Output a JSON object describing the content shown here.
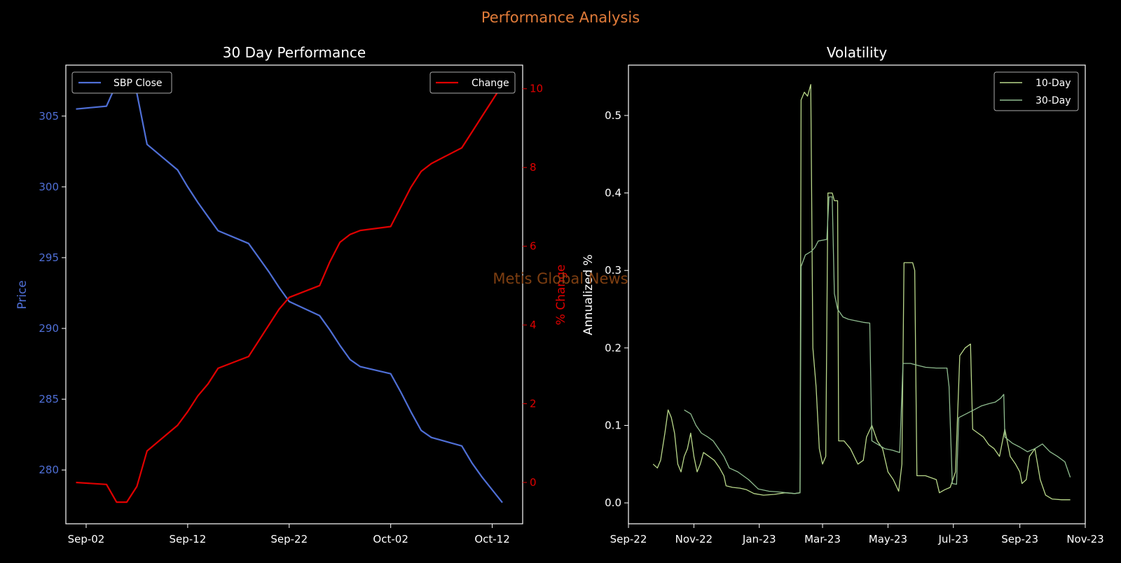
{
  "figure": {
    "title": "Performance Analysis",
    "watermark": "Metis Global News",
    "background": "#000000",
    "title_color": "#e07b39",
    "watermark_color": "#8b4513"
  },
  "chart_data": [
    {
      "type": "line",
      "title": "30 Day Performance",
      "x": [
        "2023-09-01",
        "2023-09-04",
        "2023-09-05",
        "2023-09-06",
        "2023-09-07",
        "2023-09-08",
        "2023-09-11",
        "2023-09-12",
        "2023-09-13",
        "2023-09-14",
        "2023-09-15",
        "2023-09-18",
        "2023-09-19",
        "2023-09-20",
        "2023-09-21",
        "2023-09-22",
        "2023-09-25",
        "2023-09-26",
        "2023-09-27",
        "2023-09-28",
        "2023-09-29",
        "2023-10-02",
        "2023-10-03",
        "2023-10-04",
        "2023-10-05",
        "2023-10-06",
        "2023-10-09",
        "2023-10-10",
        "2023-10-11",
        "2023-10-12",
        "2023-10-13"
      ],
      "xlabel": "",
      "x_ticks": [
        "Sep-02",
        "Sep-12",
        "Sep-22",
        "Oct-02",
        "Oct-12"
      ],
      "x_tick_dates": [
        "2023-09-02",
        "2023-09-12",
        "2023-09-22",
        "2023-10-02",
        "2023-10-12"
      ],
      "xlim": [
        "2023-08-31",
        "2023-10-15"
      ],
      "y_left": {
        "label": "Price",
        "color": "#4f6fd6",
        "lim": [
          276.2,
          308.6
        ],
        "ticks": [
          280,
          285,
          290,
          295,
          300,
          305
        ]
      },
      "y_right": {
        "label": "% Change",
        "color": "#e00000",
        "lim": [
          -1.05,
          10.6
        ],
        "ticks": [
          0,
          2,
          4,
          6,
          8,
          10
        ]
      },
      "series": [
        {
          "name": "SBP Close",
          "axis": "left",
          "color": "#4f6fd6",
          "values": [
            305.5,
            305.7,
            307.3,
            307.4,
            306.6,
            303.0,
            301.2,
            300.0,
            298.9,
            297.9,
            296.9,
            296.0,
            295.0,
            294.0,
            292.9,
            291.9,
            290.9,
            289.9,
            288.8,
            287.8,
            287.3,
            286.8,
            285.5,
            284.1,
            282.8,
            282.3,
            281.7,
            280.5,
            279.5,
            278.6,
            277.7
          ]
        },
        {
          "name": "Change",
          "axis": "right",
          "color": "#e00000",
          "values": [
            0.0,
            -0.05,
            -0.5,
            -0.5,
            -0.1,
            0.8,
            1.45,
            1.8,
            2.2,
            2.5,
            2.9,
            3.2,
            3.6,
            4.0,
            4.4,
            4.7,
            5.0,
            5.6,
            6.1,
            6.3,
            6.4,
            6.5,
            7.0,
            7.5,
            7.9,
            8.1,
            8.5,
            8.9,
            9.3,
            9.7,
            10.1
          ]
        }
      ],
      "legend": [
        "SBP Close (top-left)",
        "Change (top-right)"
      ]
    },
    {
      "type": "line",
      "title": "Volatility",
      "xlabel": "",
      "ylabel": "Annualized %",
      "x_ticks": [
        "Sep-22",
        "Nov-22",
        "Jan-23",
        "Mar-23",
        "May-23",
        "Jul-23",
        "Sep-23",
        "Nov-23"
      ],
      "x_tick_dates": [
        "2022-09-01",
        "2022-11-01",
        "2023-01-01",
        "2023-03-01",
        "2023-05-01",
        "2023-07-01",
        "2023-09-01",
        "2023-11-01"
      ],
      "xlim": [
        "2022-09-01",
        "2023-11-01"
      ],
      "ylim": [
        -0.027,
        0.565
      ],
      "y_ticks": [
        0.0,
        0.1,
        0.2,
        0.3,
        0.4,
        0.5
      ],
      "legend_position": "top-right",
      "series": [
        {
          "name": "10-Day",
          "color": "#b9d88a",
          "points": [
            [
              "2022-09-24",
              0.05
            ],
            [
              "2022-09-28",
              0.045
            ],
            [
              "2022-10-01",
              0.055
            ],
            [
              "2022-10-05",
              0.09
            ],
            [
              "2022-10-08",
              0.12
            ],
            [
              "2022-10-11",
              0.11
            ],
            [
              "2022-10-14",
              0.09
            ],
            [
              "2022-10-17",
              0.05
            ],
            [
              "2022-10-20",
              0.04
            ],
            [
              "2022-10-23",
              0.06
            ],
            [
              "2022-10-26",
              0.07
            ],
            [
              "2022-10-29",
              0.09
            ],
            [
              "2022-11-01",
              0.06
            ],
            [
              "2022-11-04",
              0.04
            ],
            [
              "2022-11-07",
              0.05
            ],
            [
              "2022-11-10",
              0.065
            ],
            [
              "2022-11-15",
              0.06
            ],
            [
              "2022-11-20",
              0.055
            ],
            [
              "2022-11-25",
              0.045
            ],
            [
              "2022-11-29",
              0.035
            ],
            [
              "2022-12-01",
              0.022
            ],
            [
              "2022-12-07",
              0.02
            ],
            [
              "2022-12-14",
              0.019
            ],
            [
              "2022-12-20",
              0.017
            ],
            [
              "2022-12-27",
              0.012
            ],
            [
              "2023-01-05",
              0.01
            ],
            [
              "2023-01-15",
              0.011
            ],
            [
              "2023-01-25",
              0.013
            ],
            [
              "2023-02-03",
              0.012
            ],
            [
              "2023-02-08",
              0.013
            ],
            [
              "2023-02-09",
              0.52
            ],
            [
              "2023-02-12",
              0.53
            ],
            [
              "2023-02-15",
              0.525
            ],
            [
              "2023-02-18",
              0.54
            ],
            [
              "2023-02-20",
              0.2
            ],
            [
              "2023-02-23",
              0.15
            ],
            [
              "2023-02-26",
              0.07
            ],
            [
              "2023-03-01",
              0.05
            ],
            [
              "2023-03-04",
              0.06
            ],
            [
              "2023-03-06",
              0.4
            ],
            [
              "2023-03-10",
              0.4
            ],
            [
              "2023-03-12",
              0.39
            ],
            [
              "2023-03-15",
              0.39
            ],
            [
              "2023-03-16",
              0.08
            ],
            [
              "2023-03-21",
              0.08
            ],
            [
              "2023-03-27",
              0.07
            ],
            [
              "2023-04-03",
              0.05
            ],
            [
              "2023-04-08",
              0.055
            ],
            [
              "2023-04-11",
              0.085
            ],
            [
              "2023-04-16",
              0.1
            ],
            [
              "2023-04-21",
              0.08
            ],
            [
              "2023-04-26",
              0.07
            ],
            [
              "2023-05-01",
              0.04
            ],
            [
              "2023-05-06",
              0.03
            ],
            [
              "2023-05-11",
              0.015
            ],
            [
              "2023-05-14",
              0.05
            ],
            [
              "2023-05-16",
              0.31
            ],
            [
              "2023-05-24",
              0.31
            ],
            [
              "2023-05-26",
              0.3
            ],
            [
              "2023-05-28",
              0.035
            ],
            [
              "2023-06-05",
              0.035
            ],
            [
              "2023-06-15",
              0.03
            ],
            [
              "2023-06-18",
              0.013
            ],
            [
              "2023-06-23",
              0.017
            ],
            [
              "2023-06-28",
              0.02
            ],
            [
              "2023-07-03",
              0.04
            ],
            [
              "2023-07-07",
              0.19
            ],
            [
              "2023-07-12",
              0.2
            ],
            [
              "2023-07-17",
              0.205
            ],
            [
              "2023-07-19",
              0.095
            ],
            [
              "2023-07-24",
              0.09
            ],
            [
              "2023-07-29",
              0.085
            ],
            [
              "2023-08-03",
              0.075
            ],
            [
              "2023-08-08",
              0.07
            ],
            [
              "2023-08-13",
              0.06
            ],
            [
              "2023-08-18",
              0.095
            ],
            [
              "2023-08-23",
              0.06
            ],
            [
              "2023-08-28",
              0.05
            ],
            [
              "2023-09-01",
              0.04
            ],
            [
              "2023-09-03",
              0.025
            ],
            [
              "2023-09-07",
              0.03
            ],
            [
              "2023-09-10",
              0.06
            ],
            [
              "2023-09-15",
              0.07
            ],
            [
              "2023-09-20",
              0.03
            ],
            [
              "2023-09-25",
              0.01
            ],
            [
              "2023-10-01",
              0.005
            ],
            [
              "2023-10-10",
              0.004
            ],
            [
              "2023-10-18",
              0.004
            ]
          ]
        },
        {
          "name": "30-Day",
          "color": "#8fbc8f",
          "points": [
            [
              "2022-10-23",
              0.12
            ],
            [
              "2022-10-29",
              0.115
            ],
            [
              "2022-11-03",
              0.1
            ],
            [
              "2022-11-08",
              0.09
            ],
            [
              "2022-11-14",
              0.085
            ],
            [
              "2022-11-19",
              0.08
            ],
            [
              "2022-11-24",
              0.07
            ],
            [
              "2022-11-29",
              0.06
            ],
            [
              "2022-12-04",
              0.045
            ],
            [
              "2022-12-12",
              0.04
            ],
            [
              "2022-12-22",
              0.03
            ],
            [
              "2022-12-31",
              0.018
            ],
            [
              "2023-01-10",
              0.015
            ],
            [
              "2023-01-20",
              0.014
            ],
            [
              "2023-02-03",
              0.012
            ],
            [
              "2023-02-08",
              0.013
            ],
            [
              "2023-02-09",
              0.305
            ],
            [
              "2023-02-13",
              0.32
            ],
            [
              "2023-02-19",
              0.325
            ],
            [
              "2023-02-22",
              0.33
            ],
            [
              "2023-02-25",
              0.338
            ],
            [
              "2023-03-05",
              0.34
            ],
            [
              "2023-03-07",
              0.395
            ],
            [
              "2023-03-10",
              0.395
            ],
            [
              "2023-03-12",
              0.27
            ],
            [
              "2023-03-15",
              0.25
            ],
            [
              "2023-03-20",
              0.24
            ],
            [
              "2023-03-25",
              0.237
            ],
            [
              "2023-04-01",
              0.235
            ],
            [
              "2023-04-08",
              0.233
            ],
            [
              "2023-04-14",
              0.232
            ],
            [
              "2023-04-16",
              0.08
            ],
            [
              "2023-04-22",
              0.075
            ],
            [
              "2023-04-28",
              0.07
            ],
            [
              "2023-05-05",
              0.068
            ],
            [
              "2023-05-12",
              0.065
            ],
            [
              "2023-05-15",
              0.18
            ],
            [
              "2023-05-22",
              0.18
            ],
            [
              "2023-05-30",
              0.177
            ],
            [
              "2023-06-05",
              0.175
            ],
            [
              "2023-06-15",
              0.174
            ],
            [
              "2023-06-25",
              0.174
            ],
            [
              "2023-06-27",
              0.15
            ],
            [
              "2023-06-30",
              0.025
            ],
            [
              "2023-07-04",
              0.024
            ],
            [
              "2023-07-06",
              0.11
            ],
            [
              "2023-07-13",
              0.115
            ],
            [
              "2023-07-20",
              0.12
            ],
            [
              "2023-07-27",
              0.125
            ],
            [
              "2023-08-03",
              0.128
            ],
            [
              "2023-08-09",
              0.13
            ],
            [
              "2023-08-14",
              0.135
            ],
            [
              "2023-08-17",
              0.14
            ],
            [
              "2023-08-18",
              0.085
            ],
            [
              "2023-08-25",
              0.077
            ],
            [
              "2023-09-01",
              0.072
            ],
            [
              "2023-09-08",
              0.066
            ],
            [
              "2023-09-15",
              0.07
            ],
            [
              "2023-09-22",
              0.076
            ],
            [
              "2023-09-29",
              0.066
            ],
            [
              "2023-10-06",
              0.06
            ],
            [
              "2023-10-13",
              0.053
            ],
            [
              "2023-10-18",
              0.033
            ]
          ]
        }
      ]
    }
  ]
}
